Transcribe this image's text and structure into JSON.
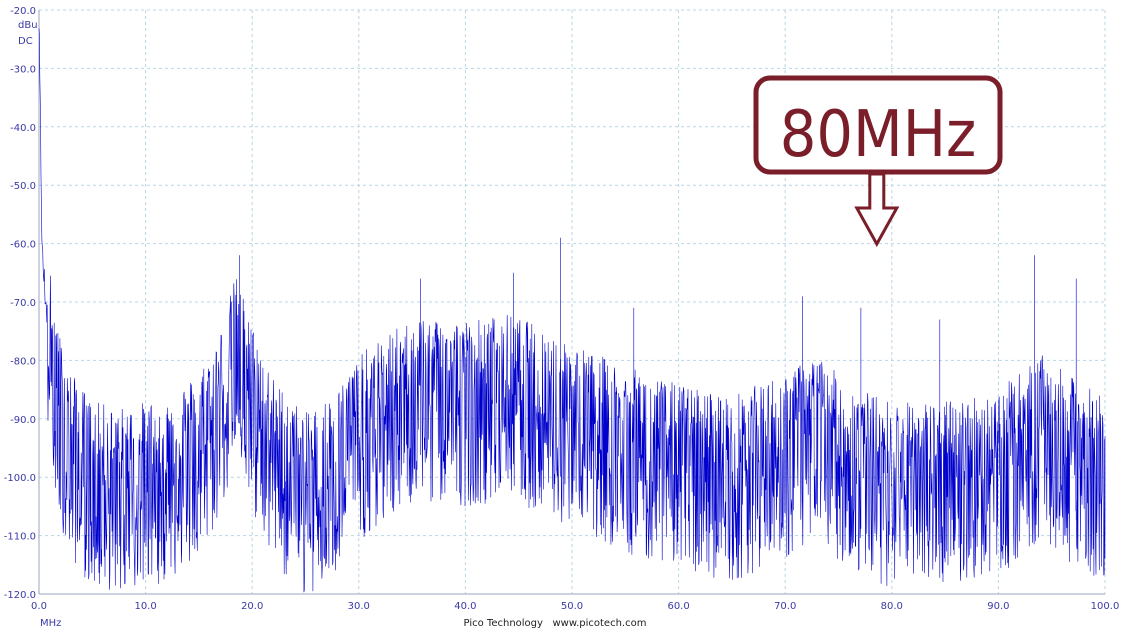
{
  "chart_data": {
    "type": "line",
    "title": "",
    "y_unit": "dBu",
    "coupling": "DC",
    "x_unit": "MHz",
    "footer": "Pico Technology   www.picotech.com",
    "xlim": [
      0,
      100
    ],
    "ylim": [
      -120,
      -20
    ],
    "x_ticks": [
      "0.0",
      "10.0",
      "20.0",
      "30.0",
      "40.0",
      "50.0",
      "60.0",
      "70.0",
      "80.0",
      "90.0",
      "100.0"
    ],
    "y_ticks": [
      "-20.0",
      "-30.0",
      "-40.0",
      "-50.0",
      "-60.0",
      "-70.0",
      "-80.0",
      "-90.0",
      "-100.0",
      "-110.0",
      "-120.0"
    ],
    "grid": true,
    "callout": {
      "label": "80MHz",
      "x": 80
    },
    "colors": {
      "trace": "#0000cc",
      "grid": "#b9d6e6",
      "axis_text": "#3a3aa8",
      "callout": "#7a1e2a"
    },
    "series": [
      {
        "envelope_x": [
          0,
          0.3,
          1,
          2,
          3,
          5,
          8,
          12,
          15,
          17,
          18.5,
          20,
          22,
          25,
          28,
          30,
          33,
          36,
          40,
          44,
          47,
          50,
          55,
          60,
          65,
          70,
          73,
          76,
          80,
          85,
          90,
          94,
          97,
          100
        ],
        "envelope_y": [
          -22,
          -62,
          -78,
          -90,
          -96,
          -101,
          -102,
          -100,
          -96,
          -89,
          -79,
          -88,
          -97,
          -103,
          -99,
          -93,
          -89,
          -86,
          -87,
          -86,
          -88,
          -91,
          -95,
          -98,
          -100,
          -96,
          -93,
          -98,
          -101,
          -101,
          -99,
          -93,
          -97,
          -100
        ],
        "spurs": [
          {
            "x": 18.8,
            "y": -62
          },
          {
            "x": 35.8,
            "y": -66
          },
          {
            "x": 44.5,
            "y": -65
          },
          {
            "x": 48.9,
            "y": -59
          },
          {
            "x": 55.8,
            "y": -71
          },
          {
            "x": 71.6,
            "y": -69
          },
          {
            "x": 77.1,
            "y": -71
          },
          {
            "x": 84.5,
            "y": -73
          },
          {
            "x": 93.4,
            "y": -62
          },
          {
            "x": 97.3,
            "y": -66
          },
          {
            "x": 100,
            "y": -93
          }
        ]
      }
    ]
  }
}
